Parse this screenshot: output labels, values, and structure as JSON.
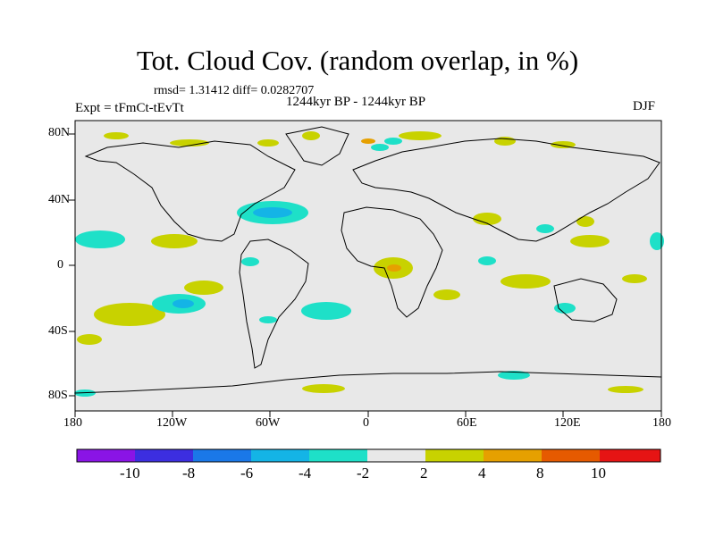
{
  "title": "Tot. Cloud Cov. (random overlap, in %)",
  "stats": "rmsd= 1.31412  diff= 0.0282707",
  "period": "1244kyr BP - 1244kyr BP",
  "experiment": "Expt = tFmCt-tEvTt",
  "season": "DJF",
  "lat_labels": [
    "80N",
    "40N",
    "0",
    "40S",
    "80S"
  ],
  "lon_labels": [
    "180",
    "120W",
    "60W",
    "0",
    "60E",
    "120E",
    "180"
  ],
  "colorbar": {
    "labels": [
      "-10",
      "-8",
      "-6",
      "-4",
      "-2",
      "2",
      "4",
      "8",
      "10"
    ],
    "colors": [
      "#8a14e6",
      "#3c2ee0",
      "#1a78e8",
      "#14b4e6",
      "#1ee0c8",
      "#e8e8e8",
      "#c8d200",
      "#e6a000",
      "#e65a00",
      "#e61414"
    ]
  },
  "map_colors": {
    "ocean": "#e8e8e8",
    "coast": "#000000"
  }
}
